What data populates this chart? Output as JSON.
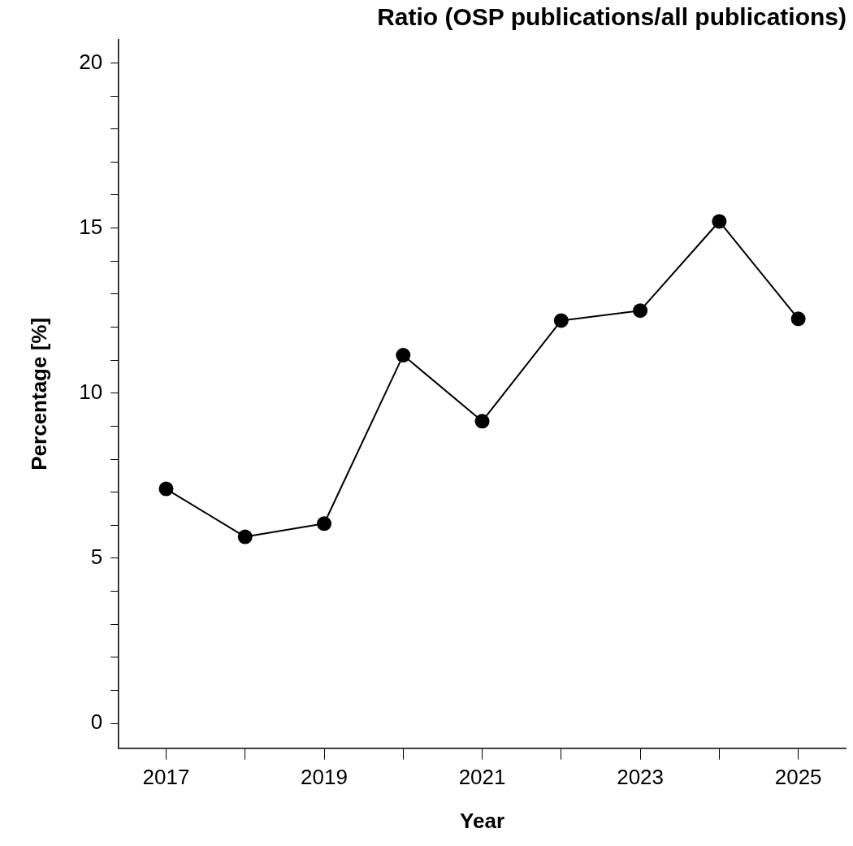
{
  "chart_data": {
    "type": "line",
    "title": "Ratio (OSP publications/all publications)",
    "xlabel": "Year",
    "ylabel": "Percentage [%]",
    "x": [
      2017,
      2018,
      2019,
      2020,
      2021,
      2022,
      2023,
      2024,
      2025
    ],
    "series": [
      {
        "color": "#000000",
        "values": [
          7.1,
          5.65,
          6.05,
          11.15,
          9.15,
          12.2,
          12.5,
          15.2,
          12.25
        ]
      }
    ],
    "xlim": [
      2016.4,
      2025.6
    ],
    "ylim": [
      -0.75,
      20.7
    ],
    "xticks": [
      2017,
      {
        "value": 2018,
        "label": null
      },
      2019,
      {
        "value": 2020,
        "label": null
      },
      2021,
      {
        "value": 2022,
        "label": null
      },
      2023,
      {
        "value": 2024,
        "label": null
      },
      2025
    ],
    "yticks": [
      0,
      {
        "value": 1,
        "label": null
      },
      {
        "value": 2,
        "label": null
      },
      {
        "value": 3,
        "label": null
      },
      {
        "value": 4,
        "label": null
      },
      5,
      {
        "value": 6,
        "label": null
      },
      {
        "value": 7,
        "label": null
      },
      {
        "value": 8,
        "label": null
      },
      {
        "value": 9,
        "label": null
      },
      10,
      {
        "value": 11,
        "label": null
      },
      {
        "value": 12,
        "label": null
      },
      {
        "value": 13,
        "label": null
      },
      {
        "value": 14,
        "label": null
      },
      15,
      {
        "value": 16,
        "label": null
      },
      {
        "value": 17,
        "label": null
      },
      {
        "value": 18,
        "label": null
      },
      {
        "value": 19,
        "label": null
      },
      20
    ],
    "marker": "circle",
    "line_style": "solid",
    "grid": false,
    "legend": false
  }
}
